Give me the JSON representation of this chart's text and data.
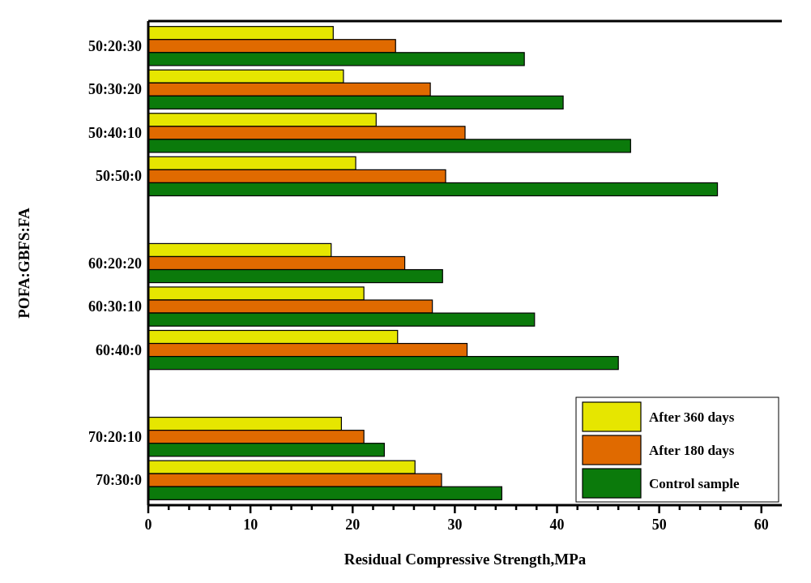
{
  "chart_data": {
    "type": "bar",
    "orientation": "horizontal",
    "xlabel": "Residual Compressive Strength,MPa",
    "ylabel": "POFA:GBFS:FA",
    "categories": [
      "50:20:30",
      "50:30:20",
      "50:40:10",
      "50:50:0",
      null,
      "60:20:20",
      "60:30:10",
      "60:40:0",
      null,
      "70:20:10",
      "70:30:0"
    ],
    "series": [
      {
        "name": "After 360 days",
        "color": "#e6e600",
        "values": [
          18.1,
          19.1,
          22.3,
          20.3,
          null,
          17.9,
          21.1,
          24.4,
          null,
          18.9,
          26.1
        ]
      },
      {
        "name": "After 180 days",
        "color": "#e06a00",
        "values": [
          24.2,
          27.6,
          31.0,
          29.1,
          null,
          25.1,
          27.8,
          31.2,
          null,
          21.1,
          28.7
        ]
      },
      {
        "name": "Control sample",
        "color": "#0b7a0b",
        "values": [
          36.8,
          40.6,
          47.2,
          55.7,
          null,
          28.8,
          37.8,
          46.0,
          null,
          23.1,
          34.6
        ]
      }
    ],
    "xlim": [
      0,
      62
    ],
    "xticks": [
      0,
      {
        "value": 2,
        "label": null
      },
      {
        "value": 4,
        "label": null
      },
      {
        "value": 6,
        "label": null
      },
      {
        "value": 8,
        "label": null
      },
      10,
      {
        "value": 12,
        "label": null
      },
      {
        "value": 14,
        "label": null
      },
      {
        "value": 16,
        "label": null
      },
      {
        "value": 18,
        "label": null
      },
      20,
      {
        "value": 22,
        "label": null
      },
      {
        "value": 24,
        "label": null
      },
      {
        "value": 26,
        "label": null
      },
      {
        "value": 28,
        "label": null
      },
      30,
      {
        "value": 32,
        "label": null
      },
      {
        "value": 34,
        "label": null
      },
      {
        "value": 36,
        "label": null
      },
      {
        "value": 38,
        "label": null
      },
      40,
      {
        "value": 42,
        "label": null
      },
      {
        "value": 44,
        "label": null
      },
      {
        "value": 46,
        "label": null
      },
      {
        "value": 48,
        "label": null
      },
      50,
      {
        "value": 52,
        "label": null
      },
      {
        "value": 54,
        "label": null
      },
      {
        "value": 56,
        "label": null
      },
      {
        "value": 58,
        "label": null
      },
      60
    ],
    "legend": "bottom right"
  }
}
